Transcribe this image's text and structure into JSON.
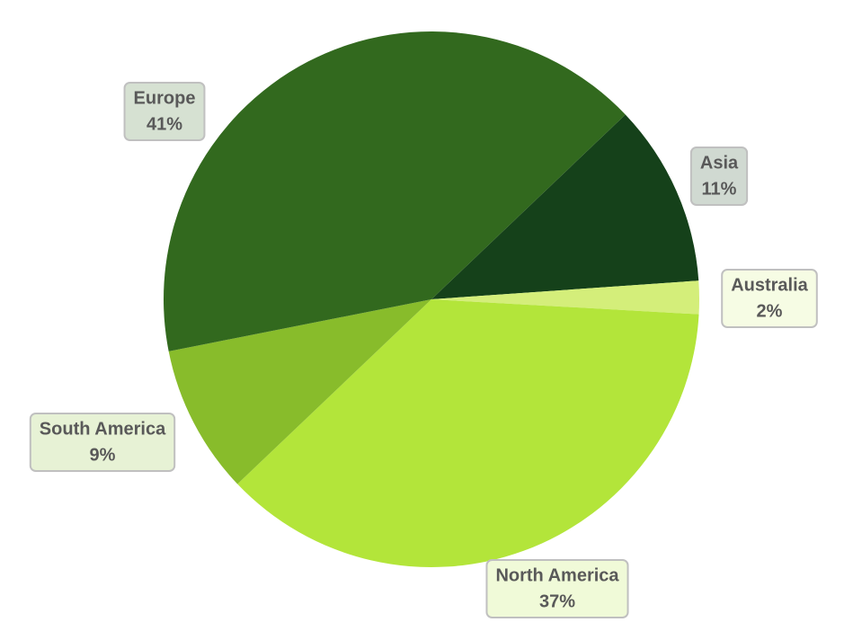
{
  "chart_data": {
    "type": "pie",
    "categories": [
      "Asia",
      "Australia",
      "North America",
      "South America",
      "Europe"
    ],
    "values": [
      11,
      2,
      37,
      9,
      41
    ],
    "value_labels": [
      "11%",
      "2%",
      "37%",
      "9%",
      "41%"
    ],
    "colors": [
      "#15411a",
      "#d4ee7a",
      "#b3e53a",
      "#88bc2b",
      "#32691e"
    ]
  }
}
